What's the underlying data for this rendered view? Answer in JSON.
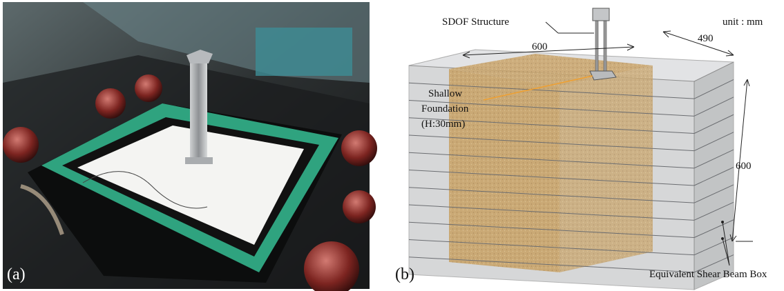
{
  "photo": {
    "label": "(a)"
  },
  "diagram": {
    "label": "(b)",
    "unit": "unit : mm",
    "structure": "SDOF Structure",
    "width": "600",
    "depth": "490",
    "height": "600",
    "foundation": [
      "Shallow",
      "Foundation",
      "(H:30mm)"
    ],
    "box": "Equivalent Shear Beam Box"
  }
}
